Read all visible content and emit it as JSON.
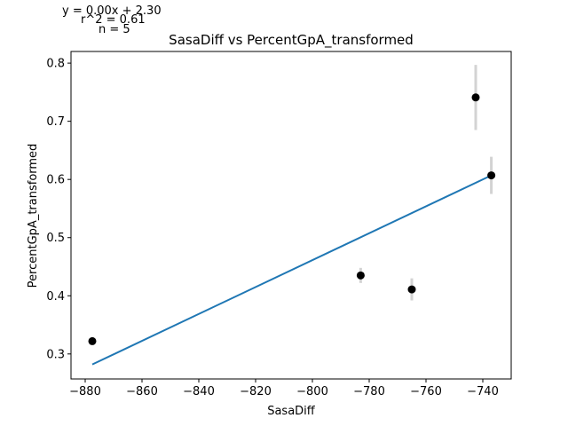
{
  "annotations": {
    "equation": "y = 0.00x + 2.30",
    "r2": "r^2 = 0.61",
    "n": "n = 5"
  },
  "colors": {
    "points": "#000000",
    "error_bars": "#d3d3d3",
    "fit_line": "#1f77b4",
    "axes": "#000000"
  },
  "chart_data": {
    "type": "scatter",
    "title": "SasaDiff vs PercentGpA_transformed",
    "xlabel": "SasaDiff",
    "ylabel": "PercentGpA_transformed",
    "xlim": [
      -885,
      -730
    ],
    "ylim": [
      0.257,
      0.82
    ],
    "xticks": [
      -880,
      -860,
      -840,
      -820,
      -800,
      -780,
      -760,
      -740
    ],
    "xtick_labels": [
      "−880",
      "−860",
      "−840",
      "−820",
      "−800",
      "−780",
      "−760",
      "−740"
    ],
    "yticks": [
      0.3,
      0.4,
      0.5,
      0.6,
      0.7,
      0.8
    ],
    "ytick_labels": [
      "0.3",
      "0.4",
      "0.5",
      "0.6",
      "0.7",
      "0.8"
    ],
    "grid": false,
    "points": [
      {
        "x": -877.5,
        "y": 0.322,
        "err": 0.0
      },
      {
        "x": -783.0,
        "y": 0.435,
        "err": 0.013
      },
      {
        "x": -765.0,
        "y": 0.411,
        "err": 0.019
      },
      {
        "x": -742.5,
        "y": 0.741,
        "err": 0.056
      },
      {
        "x": -737.0,
        "y": 0.607,
        "err": 0.032
      }
    ],
    "fit_line": {
      "x": [
        -877.5,
        -737.0
      ],
      "y": [
        0.282,
        0.607
      ]
    }
  }
}
